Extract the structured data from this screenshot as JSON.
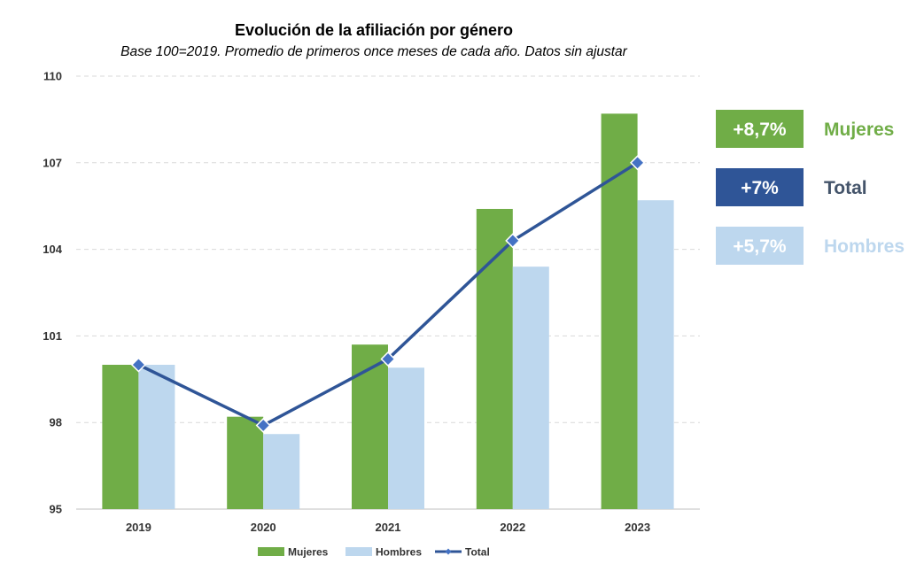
{
  "chart_data": {
    "type": "bar",
    "title": "Evolución de la afiliación por género",
    "subtitle": "Base 100=2019. Promedio de primeros once meses de cada año. Datos sin ajustar",
    "categories": [
      "2019",
      "2020",
      "2021",
      "2022",
      "2023"
    ],
    "series": [
      {
        "name": "Mujeres",
        "kind": "bar",
        "color": "#70AD47",
        "values": [
          100.0,
          98.2,
          100.7,
          105.4,
          108.7
        ]
      },
      {
        "name": "Hombres",
        "kind": "bar",
        "color": "#BDD7EE",
        "values": [
          100.0,
          97.6,
          99.9,
          103.4,
          105.7
        ]
      },
      {
        "name": "Total",
        "kind": "line",
        "color": "#2F5597",
        "marker_color": "#4472C4",
        "values": [
          100.0,
          97.9,
          100.2,
          104.3,
          107.0
        ]
      }
    ],
    "yticks": [
      "95",
      "98",
      "101",
      "104",
      "107",
      "110"
    ],
    "ylim": [
      95,
      110
    ],
    "grid": true,
    "legend": "bottom",
    "callouts": [
      {
        "value": "+8,7%",
        "label": "Mujeres",
        "box_color": "#70AD47",
        "label_color": "#70AD47"
      },
      {
        "value": "+7%",
        "label": "Total",
        "box_color": "#2F5597",
        "label_color": "#44546A"
      },
      {
        "value": "+5,7%",
        "label": "Hombres",
        "box_color": "#BDD7EE",
        "label_color": "#BDD7EE"
      }
    ]
  }
}
